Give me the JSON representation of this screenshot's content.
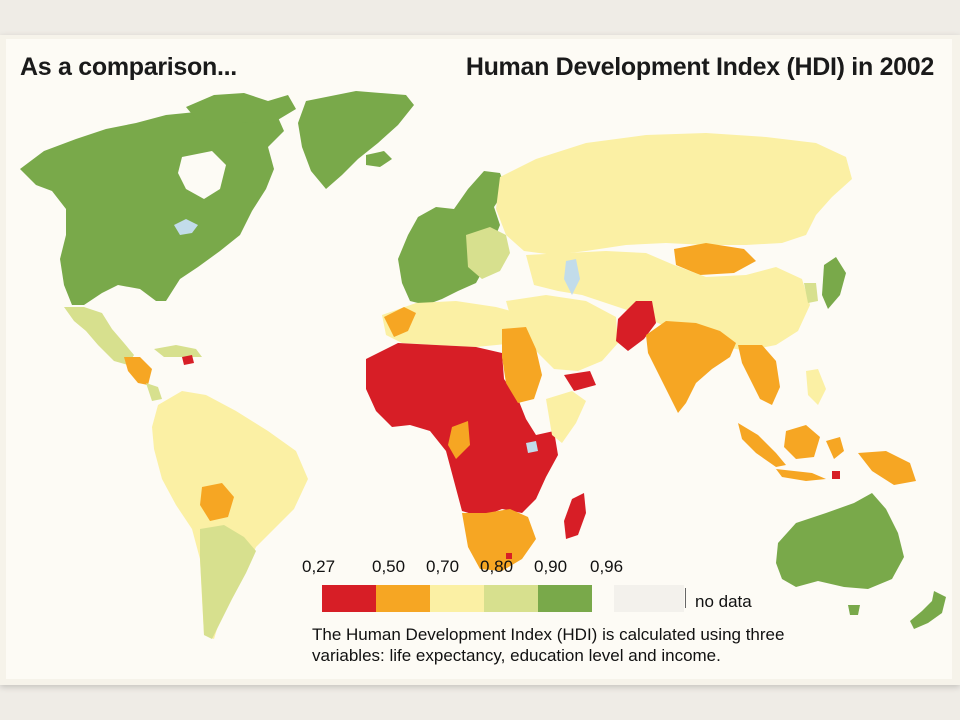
{
  "title_left": "As a comparison...",
  "title_right": "Human Development Index (HDI) in 2002",
  "legend": {
    "ticks": [
      "0,27",
      "0,50",
      "0,70",
      "0,80",
      "0,90",
      "0,96"
    ],
    "classes": [
      {
        "range": "0,27–0,50",
        "color": "#d71e26"
      },
      {
        "range": "0,50–0,70",
        "color": "#f6a623"
      },
      {
        "range": "0,70–0,80",
        "color": "#fbf0a4"
      },
      {
        "range": "0,80–0,90",
        "color": "#d7e08e"
      },
      {
        "range": "0,90–0,96",
        "color": "#79a94a"
      }
    ],
    "no_data_label": "no data",
    "no_data_color": "#f3f1ec"
  },
  "caption_lines": [
    "The Human Development Index (HDI) is calculated using three",
    "variables: life expectancy, education level and income."
  ],
  "colors": {
    "very_high": "#79a94a",
    "high": "#d7e08e",
    "medium": "#fbf0a4",
    "low": "#f6a623",
    "very_low": "#d71e26",
    "water": "#c2dcea"
  }
}
